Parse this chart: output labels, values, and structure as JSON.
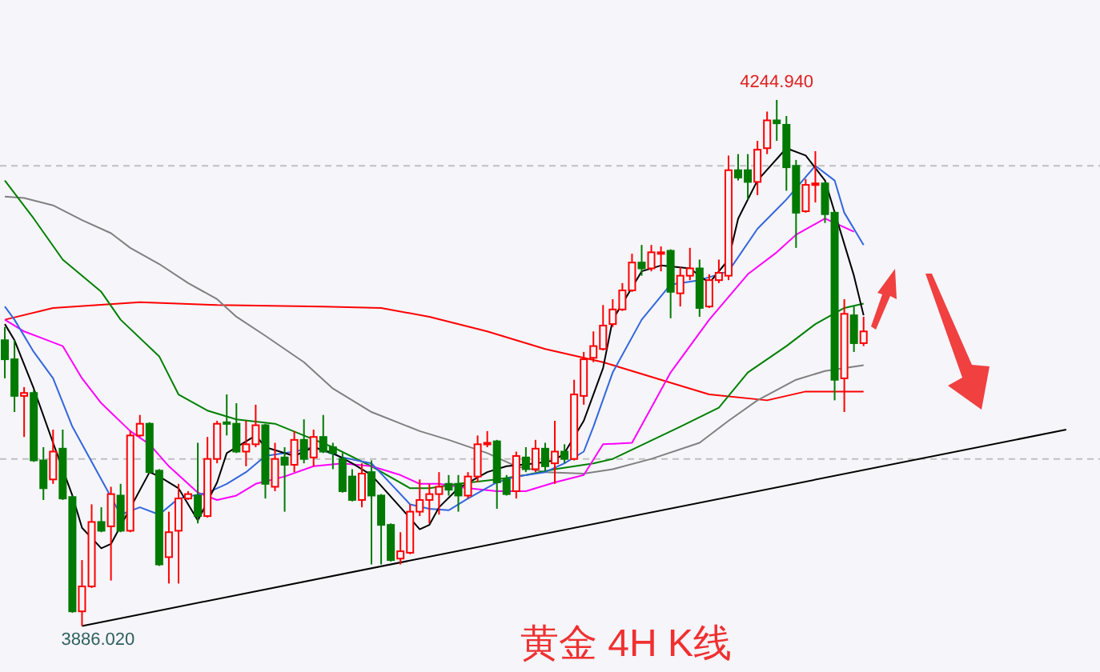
{
  "chart_data": {
    "type": "candlestick",
    "title": "黄金 4H K线",
    "tick_labels": false,
    "marker": "none",
    "categories": [
      null,
      null,
      null,
      null,
      null,
      null,
      null,
      null,
      null,
      null,
      null,
      null,
      null,
      null,
      null,
      null,
      null,
      null,
      null,
      null,
      null,
      null,
      null,
      null,
      null,
      null,
      null,
      null,
      null,
      null,
      null,
      null,
      null,
      null,
      null,
      null,
      null,
      null,
      null,
      null,
      null,
      null,
      null,
      null,
      null,
      null,
      null,
      null,
      null,
      null,
      null,
      null,
      null,
      null,
      null,
      null,
      null,
      null,
      null,
      null,
      null,
      null,
      null,
      null,
      null,
      null,
      null,
      null,
      null,
      null,
      null,
      null,
      null,
      null,
      null,
      null,
      null,
      null,
      null,
      null,
      null,
      null,
      null,
      null,
      null,
      null,
      null,
      null,
      null,
      null,
      null,
      null,
      null,
      null,
      null,
      null,
      null,
      null,
      null,
      null,
      null,
      null,
      null,
      null,
      null,
      null,
      null,
      null,
      null,
      null,
      null,
      null,
      null,
      null
    ],
    "ohlc": [
      [
        4081,
        4090,
        4055,
        4068
      ],
      [
        4068,
        4081,
        4032,
        4043
      ],
      [
        4043,
        4049,
        4015,
        4045
      ],
      [
        4045,
        4047,
        3998,
        3999
      ],
      [
        3999,
        4008,
        3972,
        3980
      ],
      [
        3986,
        4020,
        3983,
        4005
      ],
      [
        4007,
        4020,
        3972,
        3973
      ],
      [
        3974,
        3975,
        3895,
        3896
      ],
      [
        3896,
        3931,
        3886.02,
        3913
      ],
      [
        3913,
        3969,
        3912,
        3957
      ],
      [
        3957,
        3967,
        3950,
        3951
      ],
      [
        3954,
        3981,
        3917,
        3976
      ],
      [
        3975,
        3983,
        3950,
        3951
      ],
      [
        3951,
        4019,
        3950,
        4016
      ],
      [
        4016,
        4030,
        4015,
        4024
      ],
      [
        4024,
        4025,
        3990,
        3991
      ],
      [
        3992,
        3993,
        3927,
        3928
      ],
      [
        3933,
        3964,
        3915,
        3950
      ],
      [
        3951,
        3983,
        3915,
        3973
      ],
      [
        3973,
        3978,
        3972,
        3976
      ],
      [
        3975,
        4011,
        3956,
        3961
      ],
      [
        3961,
        4015,
        3960,
        4000
      ],
      [
        4000,
        4026,
        3997,
        4024
      ],
      [
        4025,
        4044,
        4016,
        4024
      ],
      [
        4024,
        4038,
        4004,
        4005
      ],
      [
        4005,
        4026,
        3995,
        4010
      ],
      [
        4010,
        4037,
        4008,
        4023
      ],
      [
        4023,
        4024,
        3973,
        3983
      ],
      [
        3981,
        4011,
        3978,
        4000
      ],
      [
        4001,
        4008,
        3964,
        3996
      ],
      [
        3996,
        4019,
        3991,
        4013
      ],
      [
        4013,
        4027,
        3997,
        4000
      ],
      [
        4001,
        4020,
        3995,
        4015
      ],
      [
        4015,
        4030,
        4004,
        4005
      ],
      [
        4008,
        4011,
        3993,
        4004
      ],
      [
        4000,
        4004,
        3977,
        3978
      ],
      [
        3988,
        3993,
        3971,
        3972
      ],
      [
        3972,
        3997,
        3967,
        3990
      ],
      [
        3991,
        3999,
        3928,
        3975
      ],
      [
        3975,
        3976,
        3928,
        3955
      ],
      [
        3955,
        3956,
        3930,
        3931
      ],
      [
        3932,
        3950,
        3928,
        3937
      ],
      [
        3936,
        3969,
        3935,
        3964
      ],
      [
        3964,
        3986,
        3961,
        3972
      ],
      [
        3972,
        3983,
        3956,
        3976
      ],
      [
        3976,
        3991,
        3962,
        3981
      ],
      [
        3983,
        3989,
        3975,
        3979
      ],
      [
        3983,
        3989,
        3964,
        3975
      ],
      [
        3975,
        3991,
        3973,
        3988
      ],
      [
        3988,
        4016,
        3984,
        4010
      ],
      [
        4010,
        4019,
        4008,
        4011
      ],
      [
        4012,
        4013,
        3966,
        3984
      ],
      [
        3986,
        3989,
        3975,
        3976
      ],
      [
        3978,
        4005,
        3973,
        4002
      ],
      [
        4001,
        4008,
        3991,
        3993
      ],
      [
        3993,
        4013,
        3991,
        4007
      ],
      [
        4007,
        4011,
        3992,
        3995
      ],
      [
        3997,
        4026,
        3983,
        4005
      ],
      [
        4005,
        4010,
        3997,
        4000
      ],
      [
        4000,
        4054,
        3999,
        4044
      ],
      [
        4043,
        4073,
        4037,
        4068
      ],
      [
        4069,
        4087,
        4066,
        4077
      ],
      [
        4075,
        4105,
        4074,
        4091
      ],
      [
        4092,
        4109,
        4090,
        4102
      ],
      [
        4102,
        4120,
        4101,
        4115
      ],
      [
        4115,
        4140,
        4114,
        4134
      ],
      [
        4134,
        4146,
        4125,
        4130
      ],
      [
        4130,
        4146,
        4128,
        4141
      ],
      [
        4140,
        4145,
        4128,
        4141
      ],
      [
        4142,
        4143,
        4096,
        4114
      ],
      [
        4113,
        4131,
        4104,
        4125
      ],
      [
        4125,
        4144,
        4122,
        4130
      ],
      [
        4130,
        4136,
        4097,
        4103
      ],
      [
        4104,
        4126,
        4103,
        4122
      ],
      [
        4122,
        4136,
        4120,
        4127
      ],
      [
        4125,
        4207,
        4122,
        4197
      ],
      [
        4197,
        4208,
        4190,
        4192
      ],
      [
        4197,
        4208,
        4177,
        4189
      ],
      [
        4189,
        4217,
        4180,
        4211
      ],
      [
        4212,
        4237,
        4208,
        4231
      ],
      [
        4231,
        4244.94,
        4217,
        4229
      ],
      [
        4228,
        4234,
        4183,
        4199
      ],
      [
        4200,
        4204,
        4144,
        4168
      ],
      [
        4169,
        4191,
        4168,
        4187
      ],
      [
        4187,
        4210,
        4175,
        4188
      ],
      [
        4188,
        4189,
        4161,
        4167
      ],
      [
        4168,
        4169,
        4040,
        4054
      ],
      [
        4055,
        4109,
        4032,
        4099
      ],
      [
        4098,
        4104,
        4073,
        4079
      ],
      [
        4079,
        4097,
        4077,
        4087
      ],
      null,
      null,
      null,
      null,
      null,
      null,
      null,
      null,
      null,
      null,
      null,
      null,
      null,
      null,
      null,
      null,
      null,
      null,
      null,
      null,
      null,
      null,
      null,
      null
    ],
    "series": [
      {
        "type": "line",
        "color": "#ff0000",
        "values": [
          4095,
          null,
          null,
          null,
          null,
          4103,
          null,
          null,
          null,
          null,
          null,
          null,
          null,
          null,
          4107,
          null,
          null,
          null,
          null,
          null,
          null,
          null,
          4105,
          null,
          null,
          null,
          null,
          null,
          null,
          null,
          null,
          null,
          null,
          4104,
          null,
          null,
          null,
          null,
          null,
          4103,
          null,
          null,
          null,
          null,
          4097,
          null,
          null,
          null,
          null,
          null,
          4087,
          null,
          null,
          null,
          null,
          null,
          4075,
          null,
          null,
          null,
          null,
          null,
          4066,
          null,
          null,
          null,
          null,
          null,
          4054,
          null,
          null,
          null,
          null,
          4044,
          null,
          null,
          null,
          null,
          null,
          4040,
          null,
          null,
          null,
          4046,
          null,
          null,
          null,
          null,
          null,
          4046,
          null,
          null,
          null,
          null,
          null,
          null,
          null,
          null,
          null,
          null,
          null,
          null,
          null,
          null,
          null,
          null,
          null,
          null,
          null,
          null,
          null,
          null,
          null,
          null
        ]
      },
      {
        "type": "line",
        "color": "#808080",
        "values": [
          4179,
          null,
          4178,
          null,
          null,
          4173,
          null,
          null,
          4163,
          null,
          null,
          4154,
          null,
          4144,
          null,
          null,
          4133,
          null,
          null,
          4120,
          null,
          null,
          4109,
          null,
          4097,
          null,
          null,
          4084,
          null,
          null,
          null,
          4066,
          null,
          null,
          4048,
          null,
          null,
          null,
          4032,
          null,
          null,
          null,
          null,
          4019,
          null,
          null,
          4013,
          null,
          null,
          null,
          4004,
          null,
          null,
          3995,
          null,
          null,
          3991,
          null,
          null,
          null,
          3990,
          null,
          null,
          3993,
          null,
          null,
          null,
          4000,
          null,
          null,
          null,
          null,
          4011,
          null,
          null,
          4026,
          null,
          null,
          4040,
          null,
          null,
          null,
          4054,
          null,
          null,
          4060,
          null,
          null,
          null,
          4064,
          null,
          null,
          null,
          null,
          null,
          null,
          null,
          null,
          null,
          null,
          null,
          null,
          null,
          null,
          null,
          null,
          null,
          null,
          null,
          null,
          null,
          null,
          null,
          null
        ]
      },
      {
        "type": "line",
        "color": "#008000",
        "values": [
          4190,
          null,
          null,
          4164,
          null,
          null,
          4136,
          null,
          null,
          null,
          4114,
          null,
          4095,
          null,
          null,
          null,
          4070,
          null,
          4044,
          null,
          null,
          4033,
          null,
          null,
          4027,
          null,
          null,
          null,
          4024,
          null,
          null,
          4016,
          null,
          null,
          4008,
          null,
          null,
          null,
          3995,
          null,
          null,
          null,
          3980,
          null,
          3980,
          null,
          null,
          3983,
          null,
          null,
          null,
          3986,
          null,
          null,
          3989,
          null,
          null,
          3993,
          null,
          null,
          null,
          3997,
          null,
          4000,
          null,
          null,
          null,
          null,
          null,
          null,
          4022,
          null,
          null,
          null,
          4035,
          null,
          null,
          4059,
          null,
          null,
          null,
          4077,
          null,
          null,
          4092,
          null,
          null,
          4103,
          null,
          4106,
          null,
          null,
          null,
          null,
          null,
          null,
          null,
          null,
          null,
          null,
          null,
          null,
          null,
          null,
          null,
          null,
          null,
          null,
          null,
          null,
          null,
          null,
          null,
          null
        ]
      },
      {
        "type": "line",
        "color": "#ff00ff",
        "values": [
          4095,
          null,
          4087,
          null,
          4082,
          null,
          4077,
          null,
          4055,
          null,
          4038,
          null,
          null,
          4019,
          null,
          4010,
          null,
          3995,
          null,
          null,
          3977,
          null,
          3972,
          null,
          3975,
          null,
          3983,
          null,
          null,
          3988,
          null,
          null,
          3995,
          null,
          null,
          3997,
          null,
          null,
          3995,
          null,
          null,
          3989,
          null,
          3983,
          null,
          3983,
          null,
          null,
          3980,
          null,
          null,
          3978,
          null,
          null,
          3978,
          null,
          null,
          3984,
          null,
          null,
          3989,
          null,
          4010,
          null,
          null,
          4011,
          null,
          null,
          null,
          4059,
          null,
          null,
          null,
          4095,
          null,
          null,
          null,
          4126,
          null,
          null,
          4141,
          null,
          4153,
          null,
          null,
          4164,
          4161,
          null,
          4155,
          null,
          null,
          null,
          null,
          null,
          null,
          null,
          null,
          null,
          null,
          null,
          null,
          null,
          null,
          null,
          null,
          null,
          null,
          null,
          null,
          null,
          null,
          null,
          null,
          null
        ]
      },
      {
        "type": "line",
        "color": "#3366dd",
        "values": [
          4104,
          4095,
          null,
          4073,
          null,
          4055,
          null,
          4022,
          null,
          null,
          3986,
          null,
          3962,
          null,
          3967,
          null,
          3962,
          null,
          3973,
          null,
          null,
          3977,
          null,
          3983,
          null,
          3991,
          null,
          4002,
          null,
          null,
          4005,
          null,
          4008,
          null,
          null,
          4001,
          null,
          null,
          3997,
          null,
          null,
          null,
          3969,
          null,
          3966,
          null,
          3965,
          null,
          3973,
          null,
          null,
          3984,
          null,
          3988,
          null,
          null,
          3991,
          null,
          3997,
          null,
          4005,
          4022,
          null,
          4059,
          null,
          null,
          4095,
          null,
          null,
          4119,
          null,
          null,
          4122,
          null,
          null,
          4128,
          null,
          null,
          4157,
          null,
          null,
          4177,
          null,
          null,
          4200,
          null,
          4190,
          4168,
          null,
          4146,
          null,
          null,
          null,
          null,
          null,
          null,
          null,
          null,
          null,
          null,
          null,
          null,
          null,
          null,
          null,
          null,
          null,
          null,
          null,
          null,
          null,
          null,
          null,
          null
        ]
      },
      {
        "type": "line",
        "color": "#000000",
        "values": [
          4092,
          4081,
          null,
          4048,
          null,
          4011,
          null,
          3975,
          3953,
          null,
          3939,
          3942,
          null,
          null,
          null,
          3991,
          3988,
          null,
          3980,
          null,
          3958,
          null,
          3984,
          4004,
          null,
          null,
          4016,
          4008,
          null,
          null,
          4002,
          null,
          4008,
          null,
          4004,
          null,
          3997,
          null,
          3989,
          null,
          null,
          3967,
          null,
          3952,
          3955,
          3967,
          null,
          3980,
          null,
          null,
          3991,
          null,
          3995,
          null,
          null,
          3997,
          null,
          3999,
          4004,
          null,
          4026,
          null,
          4062,
          4095,
          null,
          null,
          4128,
          null,
          4132,
          null,
          null,
          4130,
          null,
          4120,
          null,
          4136,
          4164,
          null,
          4190,
          null,
          null,
          4212,
          null,
          4207,
          null,
          4190,
          null,
          null,
          4125,
          4098,
          null,
          null,
          null,
          null,
          null,
          null,
          null,
          null,
          null,
          null,
          null,
          null,
          null,
          null,
          null,
          null,
          null,
          null,
          null,
          null,
          null,
          null,
          null,
          null
        ]
      },
      {
        "type": "line",
        "color": "#000000",
        "values": [
          null,
          null,
          null,
          null,
          null,
          null,
          null,
          null,
          3886,
          null,
          null,
          null,
          null,
          null,
          null,
          null,
          null,
          null,
          null,
          null,
          null,
          null,
          null,
          null,
          null,
          null,
          null,
          null,
          null,
          null,
          null,
          null,
          null,
          null,
          null,
          null,
          null,
          null,
          null,
          null,
          null,
          null,
          null,
          null,
          null,
          null,
          null,
          null,
          null,
          null,
          null,
          null,
          null,
          null,
          null,
          null,
          null,
          null,
          null,
          null,
          null,
          null,
          null,
          null,
          null,
          null,
          null,
          null,
          null,
          null,
          null,
          null,
          null,
          null,
          null,
          null,
          null,
          null,
          null,
          null,
          null,
          null,
          null,
          null,
          null,
          null,
          null,
          null,
          null,
          null,
          null,
          null,
          null,
          null,
          null,
          null,
          null,
          null,
          null,
          null,
          null,
          null,
          null,
          null,
          null,
          null,
          null,
          null,
          null,
          null,
          4020,
          null,
          null,
          null
        ]
      }
    ],
    "ref_lines": [
      {
        "axis": "y",
        "value": 4200,
        "color": "#c0c0c0",
        "line_style": "dashed"
      },
      {
        "axis": "y",
        "value": 4000,
        "color": "#c0c0c0",
        "line_style": "dashed"
      }
    ],
    "annotations": [
      {
        "text": "4244.940",
        "y": 4244.94
      },
      {
        "text": "3886.020",
        "y": 3886.02
      }
    ]
  }
}
